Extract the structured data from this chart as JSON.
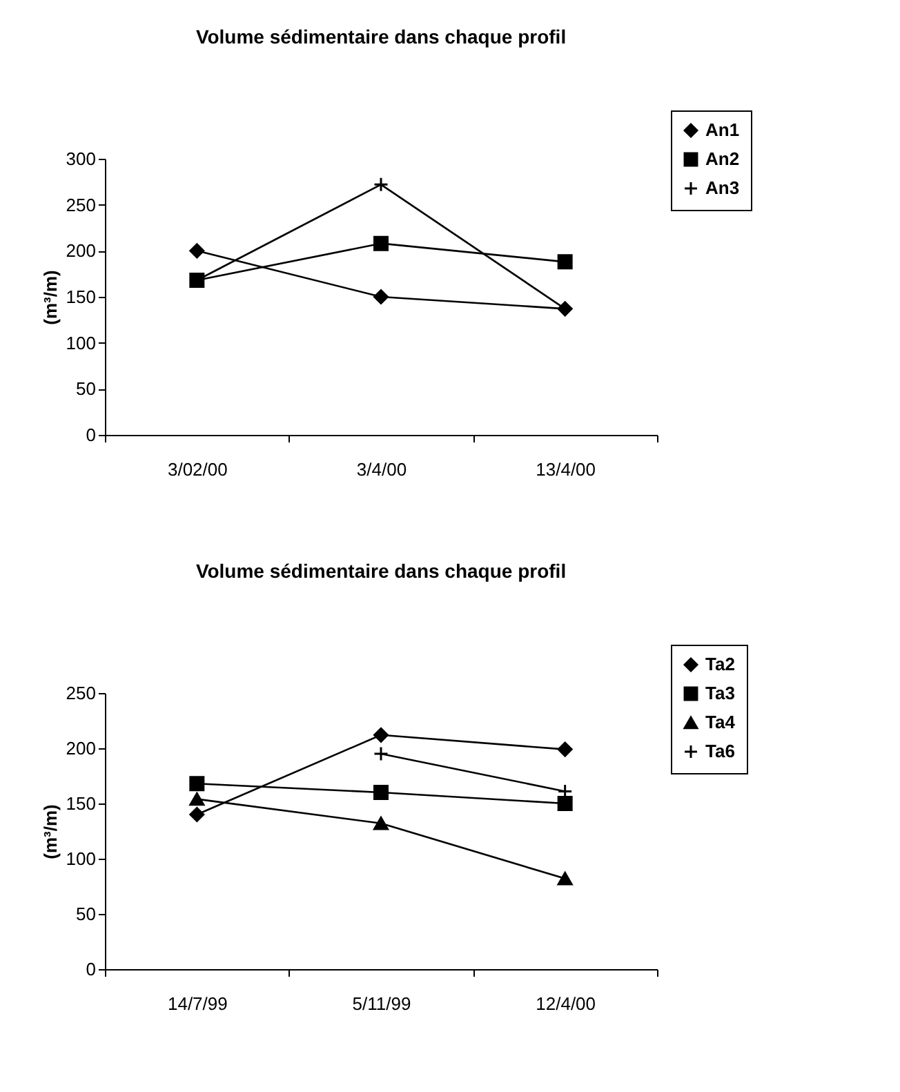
{
  "chart_data": [
    {
      "type": "line",
      "title": "Volume sédimentaire dans chaque profil",
      "ylabel": "(m³/m)",
      "categories": [
        "3/02/00",
        "3/4/00",
        "13/4/00"
      ],
      "ylim": [
        0,
        300
      ],
      "yticks": [
        0,
        50,
        100,
        150,
        200,
        250,
        300
      ],
      "grid": false,
      "legend": "top right",
      "series": [
        {
          "name": "An1",
          "color": "#000000",
          "marker": "diamond",
          "values": [
            200,
            150,
            137
          ]
        },
        {
          "name": "An2",
          "color": "#000000",
          "marker": "square",
          "values": [
            168,
            208,
            188
          ]
        },
        {
          "name": "An3",
          "color": "#000000",
          "marker": "cross",
          "values": [
            168,
            272,
            137
          ]
        }
      ]
    },
    {
      "type": "line",
      "title": "Volume sédimentaire dans chaque profil",
      "ylabel": "(m³/m)",
      "categories": [
        "14/7/99",
        "5/11/99",
        "12/4/00"
      ],
      "ylim": [
        0,
        250
      ],
      "yticks": [
        0,
        50,
        100,
        150,
        200,
        250
      ],
      "grid": false,
      "legend": "top right",
      "series": [
        {
          "name": "Ta2",
          "color": "#000000",
          "marker": "diamond",
          "values": [
            140,
            212,
            199
          ]
        },
        {
          "name": "Ta3",
          "color": "#000000",
          "marker": "square",
          "values": [
            168,
            160,
            150
          ]
        },
        {
          "name": "Ta4",
          "color": "#000000",
          "marker": "triangle",
          "values": [
            154,
            132,
            82
          ]
        },
        {
          "name": "Ta6",
          "color": "#000000",
          "marker": "cross",
          "values": [
            null,
            195,
            161
          ]
        }
      ]
    }
  ]
}
